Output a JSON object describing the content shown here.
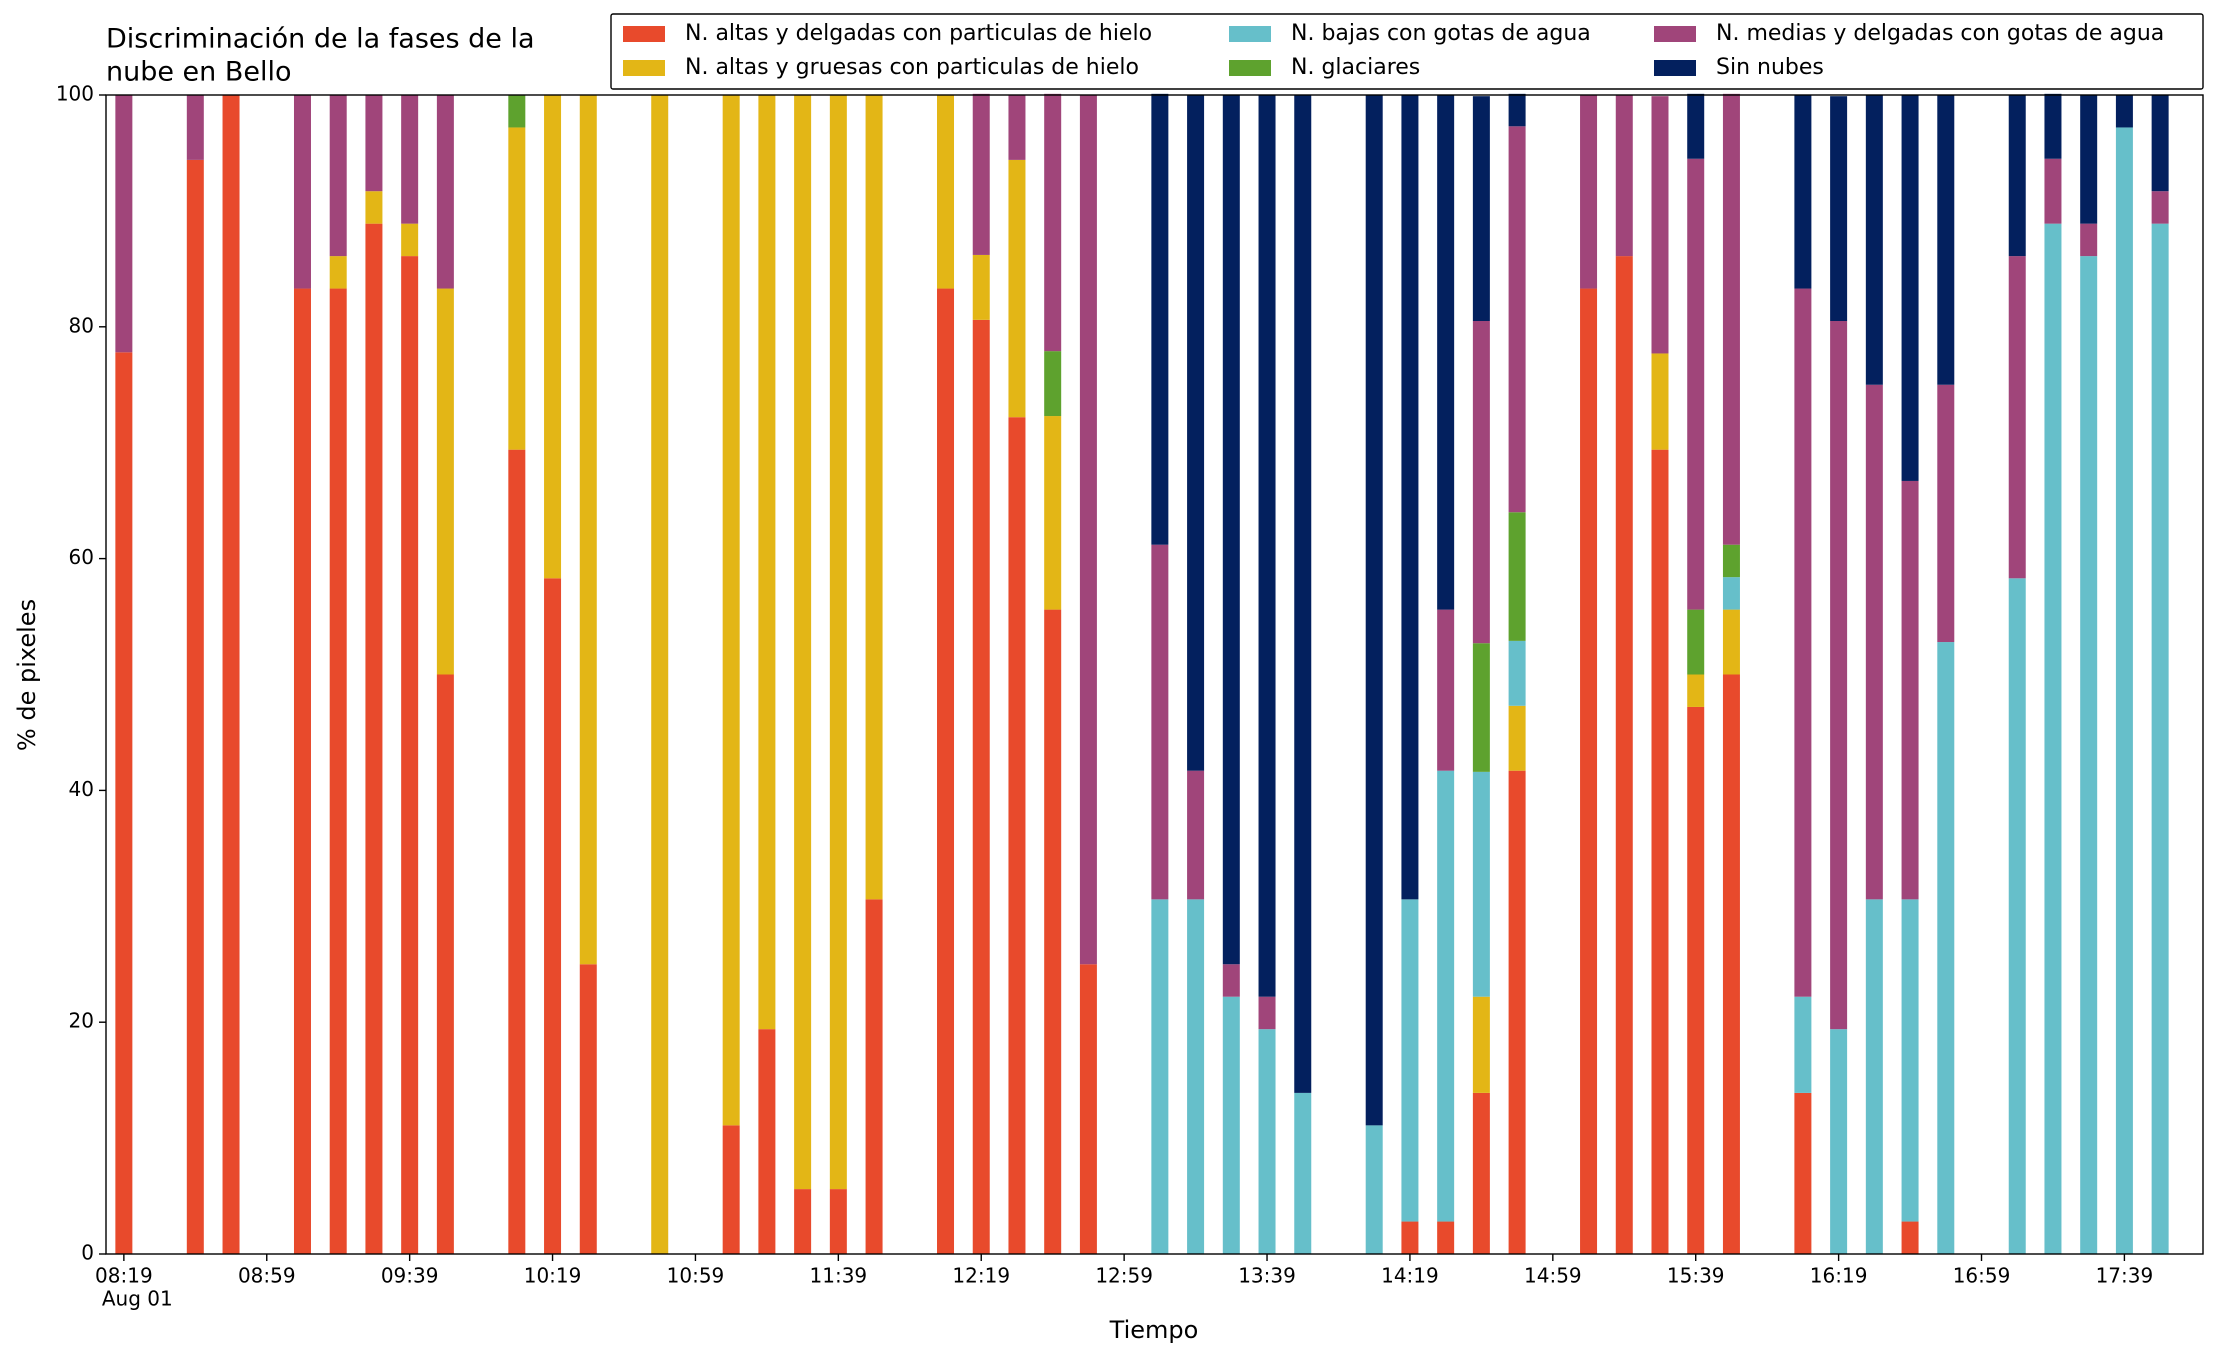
{
  "chart_data": {
    "type": "bar",
    "stacked": true,
    "title": [
      "Discriminación de la fases de la",
      "nube en Bello"
    ],
    "xlabel": "Tiempo",
    "ylabel": "% de pixeles",
    "x": [
      "08:19",
      "08:39",
      "08:49",
      "09:09",
      "09:19",
      "09:29",
      "09:39",
      "09:49",
      "10:09",
      "10:19",
      "10:29",
      "10:49",
      "11:09",
      "11:19",
      "11:29",
      "11:39",
      "11:49",
      "12:09",
      "12:19",
      "12:29",
      "12:39",
      "12:49",
      "13:09",
      "13:19",
      "13:29",
      "13:39",
      "13:49",
      "14:09",
      "14:19",
      "14:29",
      "14:39",
      "14:49",
      "15:09",
      "15:19",
      "15:29",
      "15:39",
      "15:49",
      "16:09",
      "16:19",
      "16:29",
      "16:39",
      "16:49",
      "17:09",
      "17:19",
      "17:29",
      "17:39",
      "17:49"
    ],
    "xlim": [
      "08:14",
      "18:01"
    ],
    "xticks": [
      "08:19",
      "08:59",
      "09:39",
      "10:19",
      "10:59",
      "11:39",
      "12:19",
      "12:59",
      "13:39",
      "14:19",
      "14:59",
      "15:39",
      "16:19",
      "16:59",
      "17:39"
    ],
    "xtick_date": "Aug 01",
    "ylim": [
      0,
      100
    ],
    "yticks": [
      0,
      20,
      40,
      60,
      80,
      100
    ],
    "legend": "top-right",
    "series": [
      {
        "name": "N. altas y delgadas con particulas de hielo",
        "color": "#e84a2c",
        "values": [
          77.8,
          94.4,
          100,
          83.3,
          83.3,
          88.9,
          86.1,
          50,
          69.4,
          58.3,
          25,
          0,
          11.1,
          19.4,
          5.6,
          5.6,
          30.6,
          83.3,
          80.6,
          72.2,
          55.6,
          25,
          0,
          0,
          0,
          0,
          0,
          0,
          2.8,
          2.8,
          13.9,
          41.7,
          83.3,
          86.1,
          69.4,
          47.2,
          50,
          13.9,
          0,
          0,
          2.8,
          0,
          0,
          0,
          0,
          0,
          0
        ]
      },
      {
        "name": "N. altas y gruesas con particulas de hielo",
        "color": "#e3b616",
        "values": [
          0,
          0,
          0,
          0,
          2.8,
          2.8,
          2.8,
          33.3,
          27.8,
          41.7,
          75,
          100,
          88.9,
          80.6,
          94.4,
          94.4,
          69.4,
          16.7,
          5.6,
          22.2,
          16.7,
          0,
          0,
          0,
          0,
          0,
          0,
          0,
          0,
          0,
          8.3,
          5.6,
          0,
          0,
          8.3,
          2.8,
          5.6,
          0,
          0,
          0,
          0,
          0,
          0,
          0,
          0,
          0,
          0
        ]
      },
      {
        "name": "N. bajas con gotas de agua",
        "color": "#66bfca",
        "values": [
          0,
          0,
          0,
          0,
          0,
          0,
          0,
          0,
          0,
          0,
          0,
          0,
          0,
          0,
          0,
          0,
          0,
          0,
          0,
          0,
          0,
          0,
          30.6,
          30.6,
          22.2,
          19.4,
          13.9,
          11.1,
          27.8,
          38.9,
          19.4,
          5.6,
          0,
          0,
          0,
          0,
          2.8,
          8.3,
          19.4,
          30.6,
          27.8,
          52.8,
          58.3,
          88.9,
          86.1,
          97.2,
          88.9
        ]
      },
      {
        "name": "N. glaciares",
        "color": "#5ea22e",
        "values": [
          0,
          0,
          0,
          0,
          0,
          0,
          0,
          0,
          2.8,
          0,
          0,
          0,
          0,
          0,
          0,
          0,
          0,
          0,
          0,
          0,
          5.6,
          0,
          0,
          0,
          0,
          0,
          0,
          0,
          0,
          0,
          11.1,
          11.1,
          0,
          0,
          0,
          5.6,
          2.8,
          0,
          0,
          0,
          0,
          0,
          0,
          0,
          0,
          0,
          0
        ]
      },
      {
        "name": "N. medias y delgadas con gotas de agua",
        "color": "#a0457a",
        "values": [
          22.2,
          5.6,
          0,
          16.7,
          13.9,
          8.3,
          11.1,
          16.7,
          0,
          0,
          0,
          0,
          0,
          0,
          0,
          0,
          0,
          0,
          13.9,
          5.6,
          22.2,
          75,
          30.6,
          11.1,
          2.8,
          2.8,
          0,
          0,
          0,
          13.9,
          27.8,
          33.3,
          16.7,
          13.9,
          22.2,
          38.9,
          38.9,
          61.1,
          61.1,
          44.4,
          36.1,
          22.2,
          27.8,
          5.6,
          2.8,
          0,
          2.8
        ]
      },
      {
        "name": "Sin nubes",
        "color": "#03205e",
        "values": [
          0,
          0,
          0,
          0,
          0,
          0,
          0,
          0,
          0,
          0,
          0,
          0,
          0,
          0,
          0,
          0,
          0,
          0,
          0,
          0,
          0,
          0,
          38.9,
          58.3,
          75,
          77.8,
          86.1,
          88.9,
          69.4,
          44.4,
          19.4,
          2.8,
          0,
          0,
          0,
          5.6,
          0,
          16.7,
          19.4,
          25,
          33.3,
          25,
          13.9,
          5.6,
          11.1,
          2.8,
          8.3
        ]
      }
    ]
  }
}
